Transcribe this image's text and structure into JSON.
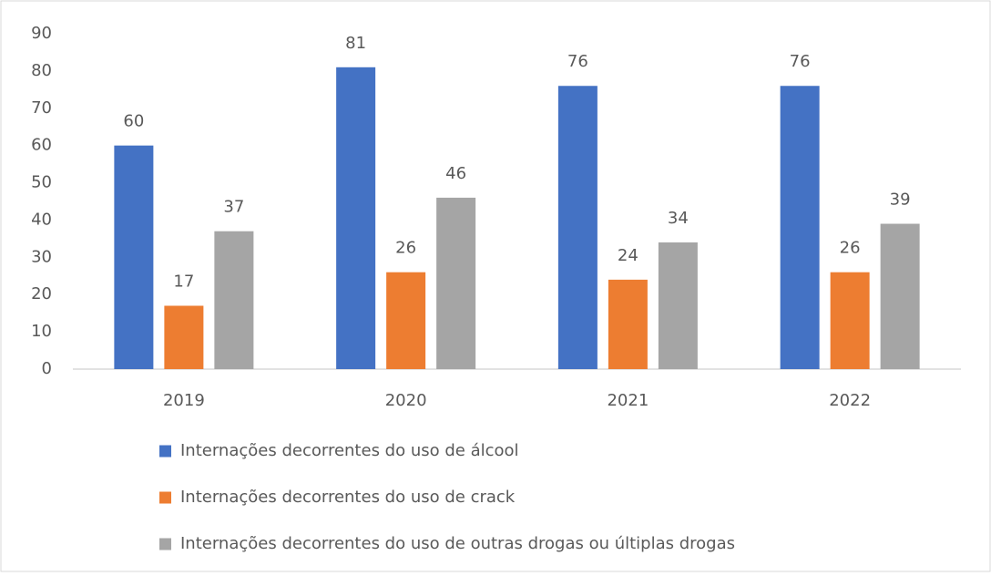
{
  "chart_data": {
    "type": "bar",
    "categories": [
      "2019",
      "2020",
      "2021",
      "2022"
    ],
    "series": [
      {
        "name": "Internações decorrentes do uso de álcool",
        "color": "#4472c4",
        "values": [
          60,
          81,
          76,
          76
        ]
      },
      {
        "name": "Internações decorrentes do uso de crack",
        "color": "#ed7d31",
        "values": [
          17,
          26,
          24,
          26
        ]
      },
      {
        "name": "Internações decorrentes do uso de outras drogas ou últiplas drogas",
        "color": "#a5a5a5",
        "values": [
          37,
          46,
          34,
          39
        ]
      }
    ],
    "ylim": [
      0,
      90
    ],
    "yticks": [
      0,
      10,
      20,
      30,
      40,
      50,
      60,
      70,
      80,
      90
    ],
    "grid": false,
    "legend": "bottom"
  }
}
